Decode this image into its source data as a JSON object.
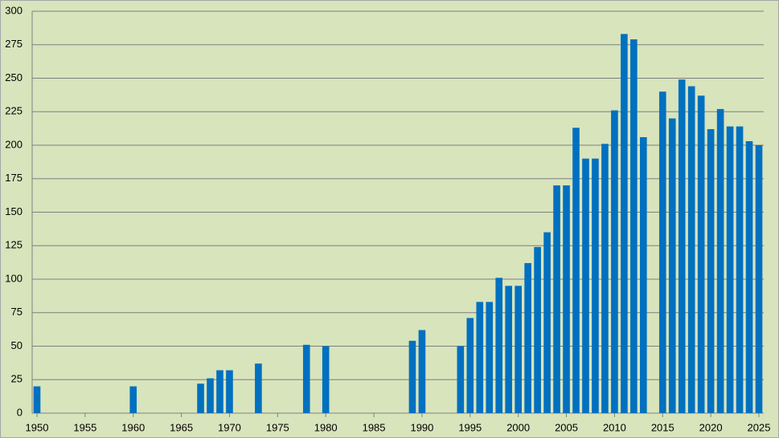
{
  "chart_data": {
    "type": "bar",
    "x": [
      1950,
      1960,
      1967,
      1968,
      1969,
      1970,
      1973,
      1978,
      1980,
      1989,
      1990,
      1994,
      1995,
      1996,
      1997,
      1998,
      1999,
      2000,
      2001,
      2002,
      2003,
      2004,
      2005,
      2006,
      2007,
      2008,
      2009,
      2010,
      2011,
      2012,
      2013,
      2015,
      2016,
      2017,
      2018,
      2019,
      2020,
      2021,
      2022,
      2023,
      2024,
      2025
    ],
    "values": [
      20,
      20,
      22,
      26,
      32,
      32,
      37,
      51,
      50,
      54,
      62,
      50,
      71,
      83,
      83,
      101,
      95,
      95,
      112,
      124,
      135,
      170,
      170,
      213,
      190,
      190,
      201,
      226,
      283,
      279,
      206,
      240,
      220,
      249,
      244,
      237,
      212,
      227,
      214,
      214,
      203,
      200
    ],
    "color": "#0070c0",
    "xlim": [
      1949.5,
      2025.5
    ],
    "xticks": [
      1950,
      1955,
      1960,
      1965,
      1970,
      1975,
      1980,
      1985,
      1990,
      1995,
      2000,
      2005,
      2010,
      2015,
      2020,
      2025
    ],
    "ylim": [
      0,
      300
    ],
    "yticks": [
      0,
      25,
      50,
      75,
      100,
      125,
      150,
      175,
      200,
      225,
      250,
      275,
      300
    ],
    "grid": true
  }
}
